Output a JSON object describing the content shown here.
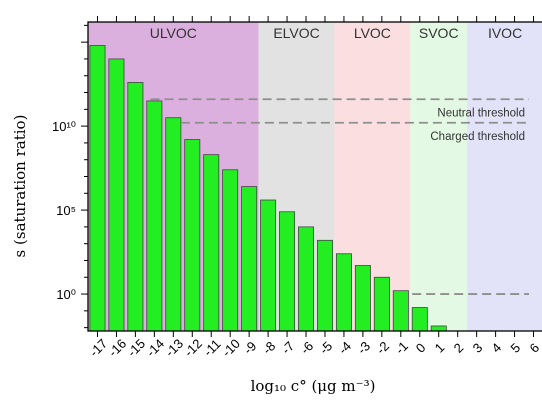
{
  "chart_data": {
    "type": "bar",
    "xlabel": "log₁₀ c° (μg m⁻³)",
    "ylabel": "s (saturation ratio)",
    "yscale": "log",
    "ylim_log10": [
      -2.2,
      16.2
    ],
    "y_tick_labels": [
      {
        "log10": 0,
        "text": "10⁰"
      },
      {
        "log10": 5,
        "text": "10⁵"
      },
      {
        "log10": 10,
        "text": "10¹⁰"
      }
    ],
    "categories": [
      "-17",
      "-16",
      "-15",
      "-14",
      "-13",
      "-12",
      "-11",
      "-10",
      "-9",
      "-8",
      "-7",
      "-6",
      "-5",
      "-4",
      "-3",
      "-2",
      "-1",
      "0",
      "1",
      "2",
      "3",
      "4",
      "5",
      "6"
    ],
    "log10_values": [
      14.8,
      14.0,
      12.6,
      11.5,
      10.5,
      9.2,
      8.3,
      7.4,
      6.4,
      5.6,
      4.9,
      4.0,
      3.2,
      2.4,
      1.7,
      1.0,
      0.2,
      -0.8,
      -1.9,
      null,
      null,
      null,
      null,
      null
    ],
    "bar_color": "#22ee22",
    "volatility_classes": [
      {
        "label": "ULVOC",
        "from": -17.5,
        "to": -8.5,
        "color": "#dcb0de"
      },
      {
        "label": "ELVOC",
        "from": -8.5,
        "to": -4.5,
        "color": "#e2e2e2"
      },
      {
        "label": "LVOC",
        "from": -4.5,
        "to": -0.5,
        "color": "#fbdfe0"
      },
      {
        "label": "SVOC",
        "from": -0.5,
        "to": 2.5,
        "color": "#e4f9e4"
      },
      {
        "label": "IVOC",
        "from": 2.5,
        "to": 6.5,
        "color": "#e2e2f8"
      }
    ],
    "thresholds": [
      {
        "label": "Neutral threshold",
        "log10": 11.6,
        "from": -14.2
      },
      {
        "label": "Charged threshold",
        "log10": 10.2,
        "from": -12.6
      }
    ],
    "reference_line": {
      "log10": 0,
      "from": -0.4
    }
  }
}
